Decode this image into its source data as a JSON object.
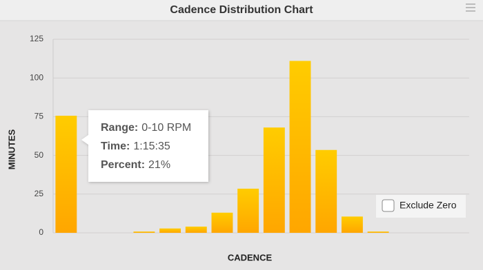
{
  "chart_data": {
    "type": "bar",
    "title": "Cadence Distribution Chart",
    "x_label": "CADENCE",
    "y_label": "MINUTES",
    "categories": [
      null,
      null,
      null,
      null,
      null,
      null,
      null,
      null,
      null,
      null,
      null,
      null,
      null,
      null,
      null,
      null
    ],
    "values": [
      75.6,
      0,
      0,
      0.8,
      2.8,
      4,
      13,
      28.5,
      68,
      111,
      53.5,
      10.5,
      0.8,
      0,
      0,
      0
    ],
    "color": "#ffc200",
    "gradient": [
      "#ffcc00",
      "#ffa600"
    ],
    "ylim": [
      0,
      125
    ],
    "yticks": [
      0,
      25,
      50,
      75,
      100,
      125
    ],
    "grid": true,
    "tooltip": {
      "lines": [
        {
          "label": "Range:",
          "value": "0-10 RPM"
        },
        {
          "label": "Time:",
          "value": "1:15:35"
        },
        {
          "label": "Percent:",
          "value": "21%"
        }
      ]
    },
    "checkbox": {
      "label": "Exclude Zero",
      "checked": false
    }
  }
}
